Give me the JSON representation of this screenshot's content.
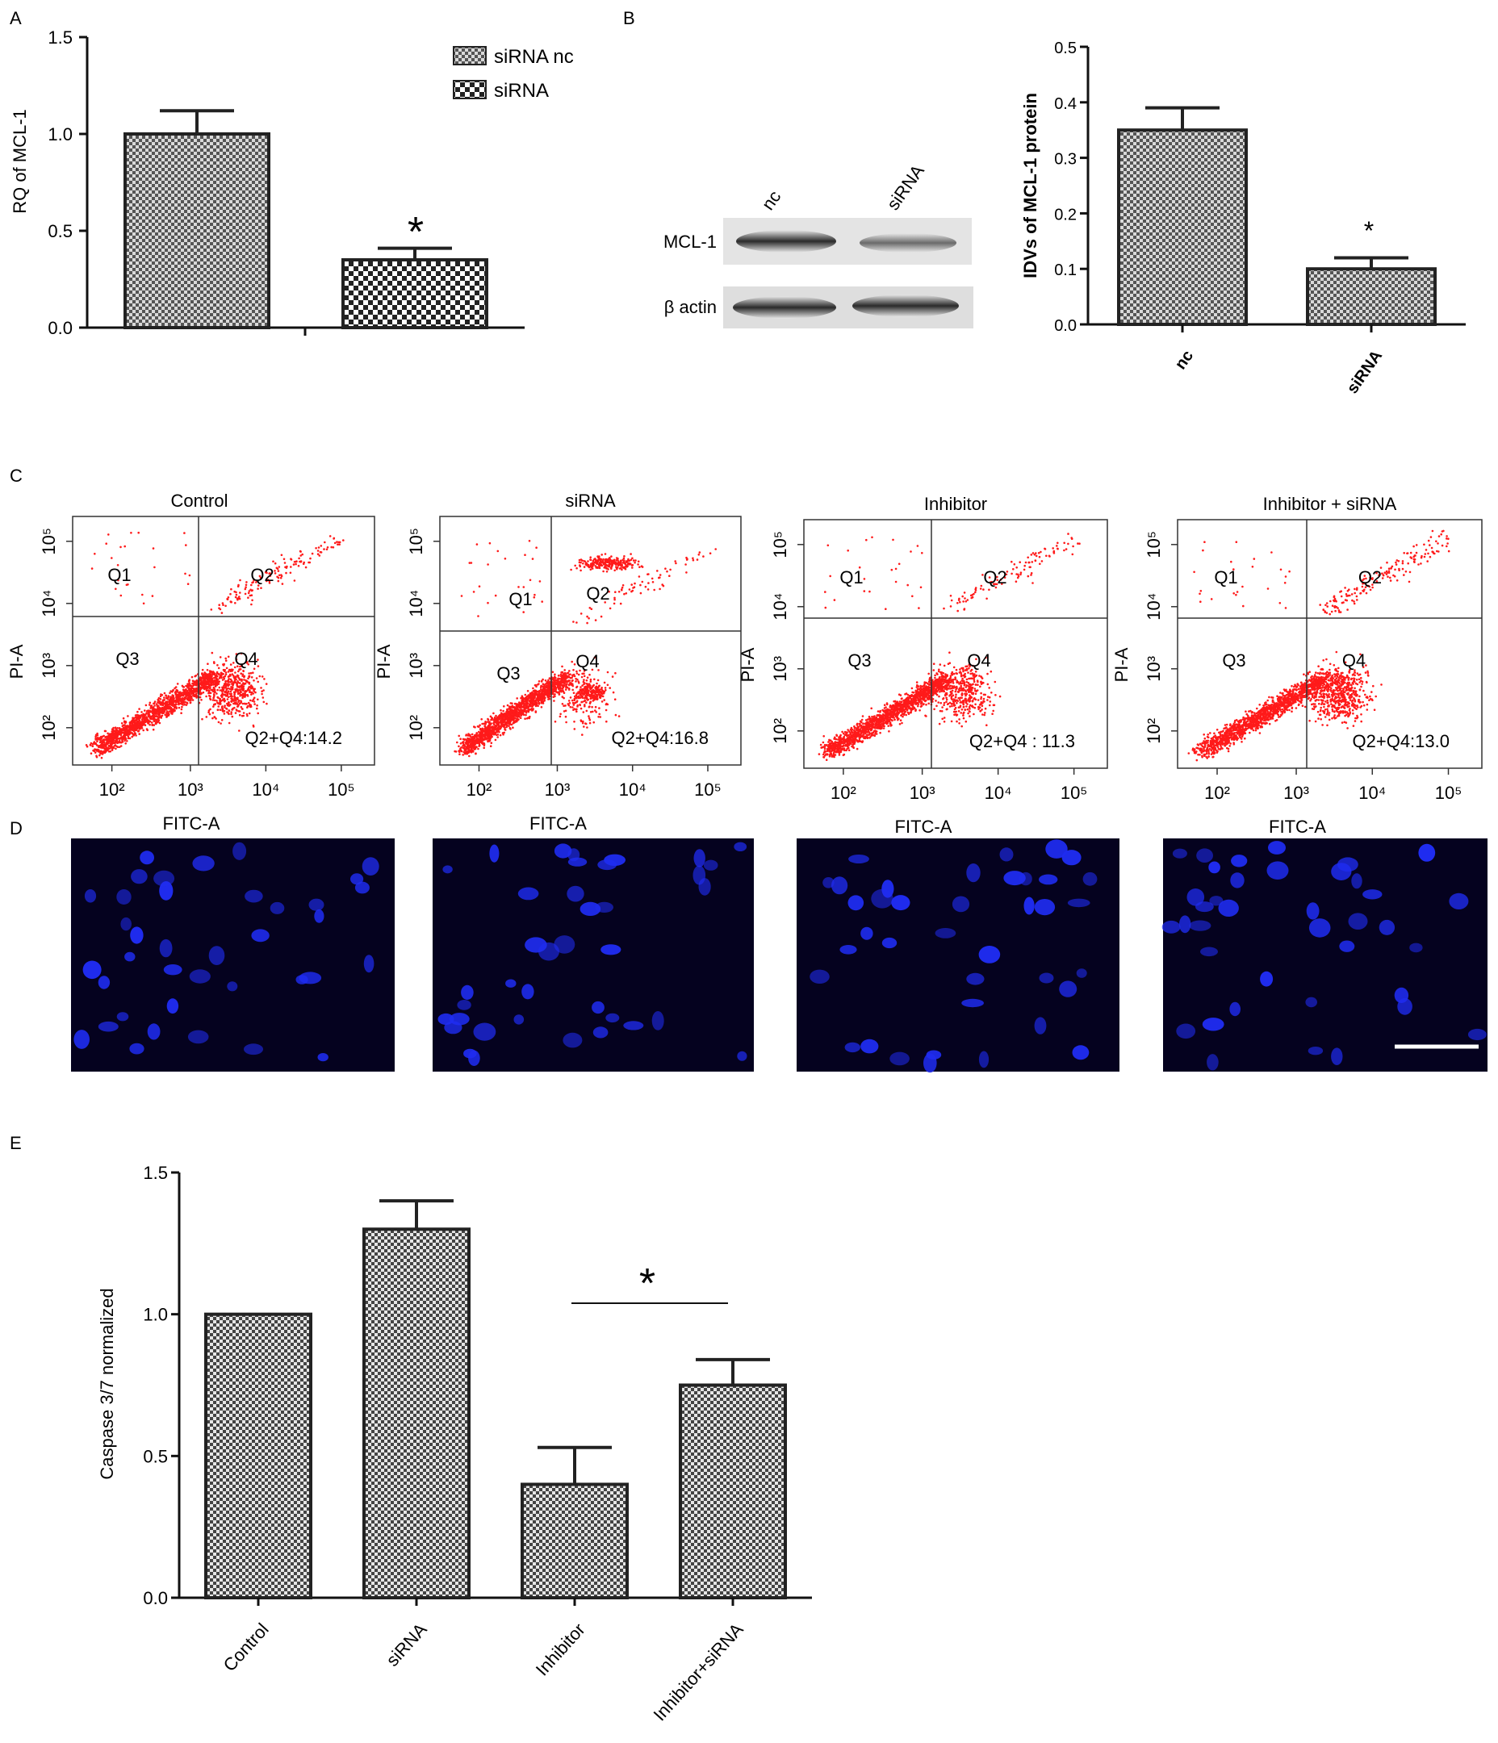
{
  "panels": [
    {
      "letter": "A"
    },
    {
      "letter": "B"
    },
    {
      "letter": "C"
    },
    {
      "letter": "D"
    },
    {
      "letter": "E"
    }
  ],
  "chart_data": [
    {
      "id": "A",
      "type": "bar",
      "ylabel": "RQ of MCL-1",
      "ylim": [
        0,
        1.5
      ],
      "yticks": [
        "0.0",
        "0.5",
        "1.0",
        "1.5"
      ],
      "legend": [
        "siRNA nc",
        "siRNA"
      ],
      "legend_position": "top-right",
      "series": [
        {
          "name": "siRNA nc",
          "value": 1.0,
          "error": 0.12
        },
        {
          "name": "siRNA",
          "value": 0.35,
          "error": 0.06
        }
      ],
      "annotation": "*"
    },
    {
      "id": "B",
      "type": "bar",
      "ylabel": "IDVs of MCL-1 protein",
      "ylim": [
        0,
        0.5
      ],
      "yticks": [
        "0.0",
        "0.1",
        "0.2",
        "0.3",
        "0.4",
        "0.5"
      ],
      "categories": [
        "nc",
        "siRNA"
      ],
      "values": [
        0.35,
        0.1
      ],
      "errors": [
        0.04,
        0.02
      ],
      "annotation": "*"
    },
    {
      "id": "C",
      "type": "scatter",
      "xlabel": "FITC-A",
      "ylabel": "PI-A",
      "scale": "log",
      "xticks": [
        "10²",
        "10³",
        "10⁴",
        "10⁵"
      ],
      "yticks": [
        "10²",
        "10³",
        "10⁴",
        "10⁵"
      ],
      "quadrants": [
        "Q1",
        "Q2",
        "Q3",
        "Q4"
      ],
      "plots": [
        {
          "title": "Control",
          "summary": "Q2+Q4:14.2",
          "value": 14.2
        },
        {
          "title": "siRNA",
          "summary": "Q2+Q4:16.8",
          "value": 16.8
        },
        {
          "title": "Inhibitor",
          "summary": "Q2+Q4 : 11.3",
          "value": 11.3
        },
        {
          "title": "Inhibitor + siRNA",
          "summary": "Q2+Q4:13.0",
          "value": 13.0
        }
      ]
    },
    {
      "id": "E",
      "type": "bar",
      "ylabel": "Caspase 3/7 normalized",
      "ylim": [
        0,
        1.5
      ],
      "yticks": [
        "0.0",
        "0.5",
        "1.0",
        "1.5"
      ],
      "categories": [
        "Control",
        "siRNA",
        "Inhibitor",
        "Inhibitor+siRNA"
      ],
      "values": [
        1.0,
        1.3,
        0.4,
        0.75
      ],
      "errors": [
        0,
        0.1,
        0.13,
        0.09
      ],
      "annotation": "*"
    }
  ],
  "blot": {
    "lanes": [
      "nc",
      "siRNA"
    ],
    "rows": [
      "MCL-1",
      "β actin"
    ]
  },
  "colors": {
    "dots": "#ff1a1a",
    "bar_fill": "#bfbfbf",
    "bar_stroke": "#222222",
    "micro_bg": "#05021f",
    "nuclei": "#1f2cf0"
  }
}
